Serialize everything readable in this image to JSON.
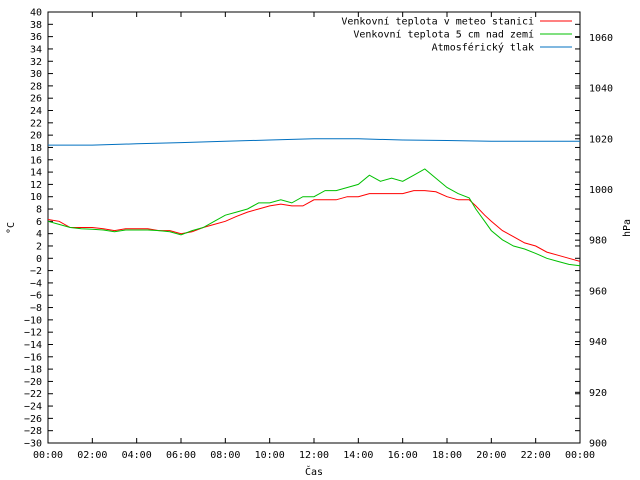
{
  "chart_data": {
    "type": "line",
    "xlabel": "Čas",
    "ylabel_left": "°C",
    "ylabel_right": "hPa",
    "x_ticks": [
      "00:00",
      "02:00",
      "04:00",
      "06:00",
      "08:00",
      "10:00",
      "12:00",
      "14:00",
      "16:00",
      "18:00",
      "20:00",
      "22:00",
      "00:00"
    ],
    "x_range_hours": [
      0,
      24
    ],
    "ylim_left": [
      -30,
      40
    ],
    "y_ticks_left": [
      40,
      38,
      36,
      34,
      32,
      30,
      28,
      26,
      24,
      22,
      20,
      18,
      16,
      14,
      12,
      10,
      8,
      6,
      4,
      2,
      0,
      -2,
      -4,
      -6,
      -8,
      -10,
      -12,
      -14,
      -16,
      -18,
      -20,
      -22,
      -24,
      -26,
      -28,
      -30
    ],
    "ylim_right": [
      900,
      1070
    ],
    "y_ticks_right": [
      1060,
      1040,
      1020,
      1000,
      980,
      960,
      940,
      920,
      900
    ],
    "legend_position": "top-right",
    "grid": false,
    "series": [
      {
        "name": "Venkovní teplota v meteo stanici",
        "color": "#ff0000",
        "axis": "left",
        "points": [
          [
            0,
            6.3
          ],
          [
            0.5,
            6
          ],
          [
            1,
            5
          ],
          [
            1.5,
            5
          ],
          [
            2,
            5
          ],
          [
            2.5,
            4.8
          ],
          [
            3,
            4.5
          ],
          [
            3.5,
            4.8
          ],
          [
            4,
            4.8
          ],
          [
            4.5,
            4.8
          ],
          [
            5,
            4.5
          ],
          [
            5.5,
            4.5
          ],
          [
            6,
            4
          ],
          [
            6.5,
            4.3
          ],
          [
            7,
            5
          ],
          [
            7.5,
            5.5
          ],
          [
            8,
            6
          ],
          [
            8.5,
            6.8
          ],
          [
            9,
            7.5
          ],
          [
            9.5,
            8
          ],
          [
            10,
            8.5
          ],
          [
            10.5,
            8.8
          ],
          [
            11,
            8.5
          ],
          [
            11.5,
            8.5
          ],
          [
            12,
            9.5
          ],
          [
            12.5,
            9.5
          ],
          [
            13,
            9.5
          ],
          [
            13.5,
            10
          ],
          [
            14,
            10
          ],
          [
            14.5,
            10.5
          ],
          [
            15,
            10.5
          ],
          [
            15.5,
            10.5
          ],
          [
            16,
            10.5
          ],
          [
            16.5,
            11
          ],
          [
            17,
            11
          ],
          [
            17.5,
            10.8
          ],
          [
            18,
            10
          ],
          [
            18.5,
            9.5
          ],
          [
            19,
            9.5
          ],
          [
            19.3,
            8.5
          ],
          [
            19.7,
            7
          ],
          [
            20,
            6
          ],
          [
            20.5,
            4.5
          ],
          [
            21,
            3.5
          ],
          [
            21.5,
            2.5
          ],
          [
            22,
            2
          ],
          [
            22.5,
            1
          ],
          [
            23,
            0.5
          ],
          [
            23.5,
            0
          ],
          [
            24,
            -0.5
          ]
        ]
      },
      {
        "name": "Venkovní teplota 5 cm nad zemí",
        "color": "#00c000",
        "axis": "left",
        "points": [
          [
            0,
            6
          ],
          [
            0.5,
            5.5
          ],
          [
            1,
            5
          ],
          [
            1.5,
            4.8
          ],
          [
            2,
            4.7
          ],
          [
            2.5,
            4.6
          ],
          [
            3,
            4.3
          ],
          [
            3.5,
            4.6
          ],
          [
            4,
            4.6
          ],
          [
            4.5,
            4.6
          ],
          [
            5,
            4.5
          ],
          [
            5.5,
            4.3
          ],
          [
            6,
            3.8
          ],
          [
            6.5,
            4.5
          ],
          [
            7,
            5
          ],
          [
            7.5,
            6
          ],
          [
            8,
            7
          ],
          [
            8.5,
            7.5
          ],
          [
            9,
            8
          ],
          [
            9.5,
            9
          ],
          [
            10,
            9
          ],
          [
            10.5,
            9.5
          ],
          [
            11,
            9
          ],
          [
            11.5,
            10
          ],
          [
            12,
            10
          ],
          [
            12.5,
            11
          ],
          [
            13,
            11
          ],
          [
            13.5,
            11.5
          ],
          [
            14,
            12
          ],
          [
            14.5,
            13.5
          ],
          [
            15,
            12.5
          ],
          [
            15.5,
            13
          ],
          [
            16,
            12.5
          ],
          [
            16.5,
            13.5
          ],
          [
            17,
            14.5
          ],
          [
            17.5,
            13
          ],
          [
            18,
            11.5
          ],
          [
            18.5,
            10.5
          ],
          [
            19,
            9.8
          ],
          [
            19.3,
            8
          ],
          [
            19.7,
            6
          ],
          [
            20,
            4.5
          ],
          [
            20.5,
            3
          ],
          [
            21,
            2
          ],
          [
            21.5,
            1.5
          ],
          [
            22,
            0.8
          ],
          [
            22.5,
            0
          ],
          [
            23,
            -0.5
          ],
          [
            23.5,
            -1
          ],
          [
            24,
            -1.2
          ]
        ]
      },
      {
        "name": "Atmosférický tlak",
        "color": "#0070c0",
        "axis": "right",
        "points": [
          [
            0,
            1017.5
          ],
          [
            2,
            1017.5
          ],
          [
            4,
            1018
          ],
          [
            6,
            1018.5
          ],
          [
            8,
            1019
          ],
          [
            10,
            1019.5
          ],
          [
            12,
            1020
          ],
          [
            14,
            1020
          ],
          [
            16,
            1019.5
          ],
          [
            18,
            1019.3
          ],
          [
            20,
            1019
          ],
          [
            22,
            1019
          ],
          [
            24,
            1019
          ]
        ]
      }
    ]
  }
}
